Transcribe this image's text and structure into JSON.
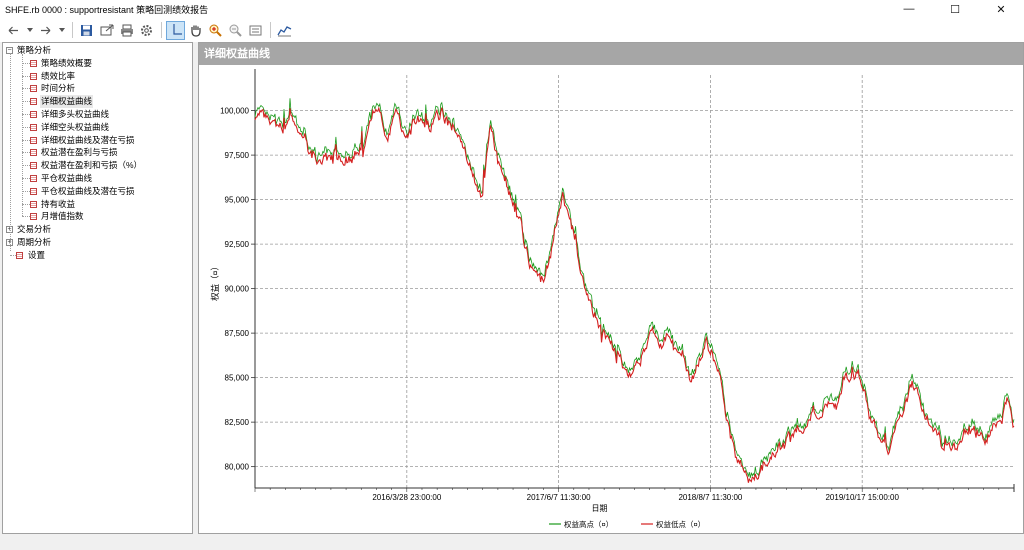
{
  "window": {
    "title": "SHFE.rb 0000 : supportresistant 策略回测绩效报告",
    "minimize": "—",
    "maximize": "☐",
    "close": "✕"
  },
  "toolbar": {
    "icons": [
      "back-arrow-icon",
      "dropdown-icon",
      "forward-arrow-icon",
      "dropdown-icon",
      "save-icon",
      "export-icon",
      "print-icon",
      "settings-icon",
      "crosshair-icon",
      "hand-icon",
      "zoom-in-icon",
      "zoom-out-icon",
      "fit-view-icon",
      "chart-style-icon"
    ]
  },
  "tree": {
    "groups": [
      {
        "label": "策略分析",
        "expanded": true,
        "items": [
          "策略绩效概要",
          "绩效比率",
          "时间分析",
          "详细权益曲线",
          "详细多头权益曲线",
          "详细空头权益曲线",
          "详细权益曲线及潜在亏损",
          "权益潜在盈利与亏损",
          "权益潜在盈利和亏损（%）",
          "平仓权益曲线",
          "平仓权益曲线及潜在亏损",
          "持有收益",
          "月增值指数"
        ]
      },
      {
        "label": "交易分析",
        "expanded": false,
        "items": []
      },
      {
        "label": "周期分析",
        "expanded": false,
        "items": []
      },
      {
        "label": "设置",
        "expanded": null,
        "items": []
      }
    ],
    "selected": "详细权益曲线"
  },
  "panel": {
    "title": "详细权益曲线"
  },
  "chart_data": {
    "type": "line",
    "ylabel": "权益（¤）",
    "xlabel": "日期",
    "ylim": [
      78800,
      102000
    ],
    "yticks": [
      80000,
      82500,
      85000,
      87500,
      90000,
      92500,
      95000,
      97500,
      100000
    ],
    "ytick_labels": [
      "80,000",
      "82,500",
      "85,000",
      "87,500",
      "90,000",
      "92,500",
      "95,000",
      "97,500",
      "100,000"
    ],
    "xticks": [
      {
        "label": "2016/3/28 23:00:00",
        "t": 0.2
      },
      {
        "label": "2017/6/7 11:30:00",
        "t": 0.4
      },
      {
        "label": "2018/8/7 11:30:00",
        "t": 0.6
      },
      {
        "label": "2019/10/17 15:00:00",
        "t": 0.8
      }
    ],
    "legend_position": "bottom-center",
    "series": [
      {
        "name": "权益高点（¤）",
        "color": "#1a9a1a"
      },
      {
        "name": "权益低点（¤）",
        "color": "#d42020"
      }
    ],
    "curve": [
      [
        0.0,
        99800
      ],
      [
        0.012,
        99500
      ],
      [
        0.025,
        99200
      ],
      [
        0.035,
        98900
      ],
      [
        0.045,
        99800
      ],
      [
        0.055,
        99000
      ],
      [
        0.065,
        98700
      ],
      [
        0.078,
        97500
      ],
      [
        0.09,
        97000
      ],
      [
        0.1,
        97500
      ],
      [
        0.115,
        97300
      ],
      [
        0.13,
        97700
      ],
      [
        0.145,
        98200
      ],
      [
        0.155,
        99800
      ],
      [
        0.165,
        100200
      ],
      [
        0.175,
        98600
      ],
      [
        0.185,
        99900
      ],
      [
        0.2,
        98800
      ],
      [
        0.215,
        99700
      ],
      [
        0.23,
        99200
      ],
      [
        0.245,
        99900
      ],
      [
        0.26,
        99200
      ],
      [
        0.27,
        98600
      ],
      [
        0.28,
        97200
      ],
      [
        0.29,
        96000
      ],
      [
        0.3,
        95600
      ],
      [
        0.31,
        99500
      ],
      [
        0.32,
        97400
      ],
      [
        0.33,
        96500
      ],
      [
        0.34,
        94600
      ],
      [
        0.35,
        93700
      ],
      [
        0.36,
        91700
      ],
      [
        0.37,
        90900
      ],
      [
        0.38,
        90600
      ],
      [
        0.39,
        91900
      ],
      [
        0.395,
        93600
      ],
      [
        0.405,
        95300
      ],
      [
        0.415,
        93600
      ],
      [
        0.425,
        92200
      ],
      [
        0.435,
        90100
      ],
      [
        0.445,
        88800
      ],
      [
        0.455,
        88000
      ],
      [
        0.465,
        87300
      ],
      [
        0.475,
        86500
      ],
      [
        0.485,
        85600
      ],
      [
        0.495,
        85200
      ],
      [
        0.505,
        85900
      ],
      [
        0.515,
        87100
      ],
      [
        0.525,
        87600
      ],
      [
        0.535,
        86900
      ],
      [
        0.545,
        87200
      ],
      [
        0.555,
        86600
      ],
      [
        0.565,
        85600
      ],
      [
        0.575,
        84800
      ],
      [
        0.585,
        86000
      ],
      [
        0.595,
        87100
      ],
      [
        0.605,
        86200
      ],
      [
        0.615,
        84200
      ],
      [
        0.625,
        82200
      ],
      [
        0.635,
        80400
      ],
      [
        0.645,
        79900
      ],
      [
        0.655,
        79400
      ],
      [
        0.665,
        79900
      ],
      [
        0.675,
        80400
      ],
      [
        0.685,
        80900
      ],
      [
        0.695,
        81200
      ],
      [
        0.705,
        82100
      ],
      [
        0.715,
        82400
      ],
      [
        0.725,
        82200
      ],
      [
        0.735,
        83100
      ],
      [
        0.745,
        82900
      ],
      [
        0.755,
        83800
      ],
      [
        0.765,
        83400
      ],
      [
        0.775,
        84700
      ],
      [
        0.785,
        84900
      ],
      [
        0.795,
        85300
      ],
      [
        0.805,
        84200
      ],
      [
        0.815,
        82300
      ],
      [
        0.825,
        81800
      ],
      [
        0.835,
        81300
      ],
      [
        0.845,
        82300
      ],
      [
        0.855,
        83400
      ],
      [
        0.865,
        84700
      ],
      [
        0.875,
        84200
      ],
      [
        0.885,
        82900
      ],
      [
        0.895,
        82400
      ],
      [
        0.905,
        81300
      ],
      [
        0.915,
        81000
      ],
      [
        0.925,
        81300
      ],
      [
        0.935,
        81800
      ],
      [
        0.945,
        82000
      ],
      [
        0.955,
        81800
      ],
      [
        0.965,
        81600
      ],
      [
        0.975,
        82500
      ],
      [
        0.985,
        83000
      ],
      [
        0.993,
        84100
      ],
      [
        1.0,
        82700
      ]
    ]
  }
}
